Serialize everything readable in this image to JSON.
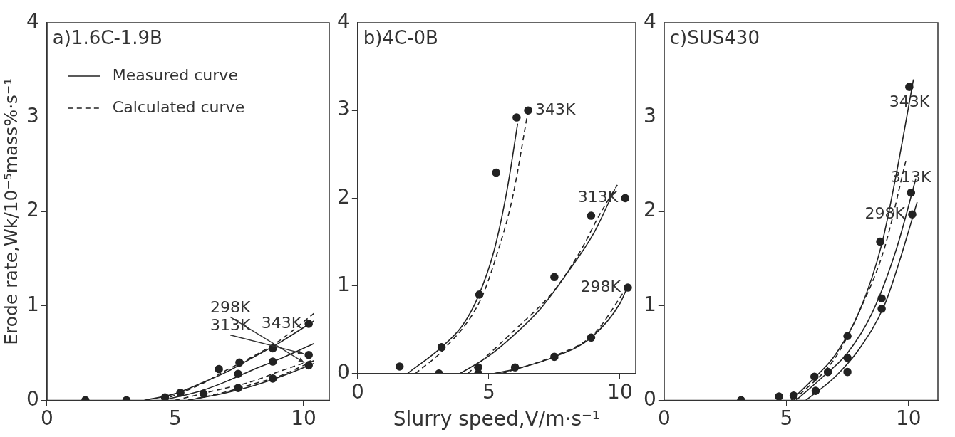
{
  "chart_data": [
    {
      "type": "scatter",
      "title": "a)1.6C-1.9B",
      "ylabel": "Erode rate,Wk/10⁻⁵mass%·s⁻¹",
      "xlim": [
        0,
        11
      ],
      "xticks": [
        0,
        5,
        10
      ],
      "ylim": [
        0,
        4
      ],
      "yticks": [
        0,
        1,
        2,
        3,
        4
      ],
      "grid": false,
      "legend": "top left",
      "series": [
        {
          "type": "scatter",
          "name": "343K",
          "color": "#222222",
          "marker": "circle",
          "x": [
            1.5,
            3.1,
            4.6,
            5.2,
            6.7,
            7.5,
            8.8,
            10.2
          ],
          "values": [
            0,
            0,
            0.03,
            0.08,
            0.33,
            0.4,
            0.55,
            0.81
          ]
        },
        {
          "type": "scatter",
          "name": "313K",
          "color": "#222222",
          "marker": "circle",
          "x": [
            7.45,
            8.8,
            10.2
          ],
          "values": [
            0.28,
            0.41,
            0.48
          ]
        },
        {
          "type": "scatter",
          "name": "298K",
          "color": "#222222",
          "marker": "circle",
          "x": [
            6.1,
            7.45,
            8.8,
            10.2
          ],
          "values": [
            0.07,
            0.13,
            0.23,
            0.37
          ]
        },
        {
          "type": "line",
          "name": "Measured curve",
          "color": "#222222",
          "marker": "none",
          "line_style": "solid",
          "x": [
            3.8,
            5,
            6,
            7,
            8,
            9,
            10.4
          ],
          "values": [
            0,
            0.07,
            0.18,
            0.3,
            0.45,
            0.6,
            0.84
          ]
        },
        {
          "type": "line",
          "name": "Calculated curve",
          "color": "#222222",
          "marker": "none",
          "line_style": "dashed",
          "x": [
            4.5,
            6,
            7,
            8,
            9,
            10.4
          ],
          "values": [
            0,
            0.17,
            0.32,
            0.46,
            0.62,
            0.92
          ]
        },
        {
          "type": "line",
          "color": "#222222",
          "marker": "none",
          "line_style": "solid",
          "x": [
            4.5,
            6,
            7,
            8,
            9,
            10.4
          ],
          "values": [
            0,
            0.1,
            0.2,
            0.32,
            0.43,
            0.6
          ]
        },
        {
          "type": "line",
          "color": "#222222",
          "marker": "none",
          "line_style": "dashed",
          "x": [
            5,
            6.5,
            8,
            9,
            10.4
          ],
          "values": [
            0,
            0.1,
            0.2,
            0.3,
            0.43
          ]
        },
        {
          "type": "line",
          "color": "#222222",
          "marker": "none",
          "line_style": "solid",
          "x": [
            5.5,
            7,
            8,
            9,
            10.4
          ],
          "values": [
            0,
            0.08,
            0.15,
            0.24,
            0.39
          ]
        },
        {
          "type": "line",
          "color": "#222222",
          "marker": "none",
          "line_style": "dashed",
          "x": [
            5.5,
            7,
            8,
            9,
            10.4
          ],
          "values": [
            0,
            0.09,
            0.17,
            0.25,
            0.42
          ]
        }
      ]
    },
    {
      "type": "scatter",
      "title": "b)4C-0B",
      "xlabel": "Slurry speed,V/m·s⁻¹",
      "xlim": [
        0,
        10.6
      ],
      "xticks": [
        0,
        5,
        10
      ],
      "ylim": [
        0,
        4
      ],
      "yticks": [
        0,
        1,
        2,
        3,
        4
      ],
      "grid": false,
      "series": [
        {
          "type": "scatter",
          "name": "343K",
          "color": "#222222",
          "marker": "circle",
          "x": [
            1.6,
            3.2,
            4.64,
            5.28,
            6.06,
            6.5
          ],
          "values": [
            0.08,
            0.3,
            0.9,
            2.29,
            2.92,
            3.0
          ]
        },
        {
          "type": "scatter",
          "name": "313K",
          "color": "#222222",
          "marker": "circle",
          "x": [
            3.1,
            4.6,
            7.5,
            8.9,
            10.2
          ],
          "values": [
            0,
            0.07,
            1.1,
            1.8,
            2.0
          ]
        },
        {
          "type": "scatter",
          "name": "298K",
          "color": "#222222",
          "marker": "circle",
          "x": [
            4.6,
            6.0,
            7.5,
            8.9,
            10.3
          ],
          "values": [
            0,
            0.07,
            0.19,
            0.41,
            0.98
          ]
        },
        {
          "type": "line",
          "color": "#222222",
          "marker": "none",
          "line_style": "solid",
          "x": [
            1.9,
            3.2,
            4,
            4.6,
            5.2,
            5.7,
            6.1
          ],
          "values": [
            0,
            0.3,
            0.55,
            0.88,
            1.4,
            2.1,
            2.85
          ]
        },
        {
          "type": "line",
          "color": "#222222",
          "marker": "none",
          "line_style": "dashed",
          "x": [
            2.2,
            3.3,
            4.7,
            5.3,
            5.9,
            6.5
          ],
          "values": [
            0,
            0.28,
            0.85,
            1.35,
            2.0,
            3.0
          ]
        },
        {
          "type": "line",
          "color": "#222222",
          "marker": "none",
          "line_style": "solid",
          "x": [
            3.9,
            5,
            6,
            7,
            8,
            9,
            9.8
          ],
          "values": [
            0,
            0.2,
            0.45,
            0.75,
            1.15,
            1.6,
            2.1
          ]
        },
        {
          "type": "line",
          "color": "#222222",
          "marker": "none",
          "line_style": "dashed",
          "x": [
            4.2,
            6,
            7.5,
            8.5,
            9.2,
            9.9
          ],
          "values": [
            0,
            0.5,
            0.95,
            1.4,
            1.8,
            2.15
          ]
        },
        {
          "type": "line",
          "color": "#222222",
          "marker": "none",
          "line_style": "solid",
          "x": [
            5.2,
            6,
            7.5,
            8.9,
            10,
            10.3
          ],
          "values": [
            0,
            0.05,
            0.19,
            0.41,
            0.8,
            1.0
          ]
        },
        {
          "type": "line",
          "color": "#222222",
          "marker": "none",
          "line_style": "dashed",
          "x": [
            5.5,
            7.5,
            9,
            10.3
          ],
          "values": [
            0,
            0.2,
            0.45,
            1.0
          ]
        }
      ]
    },
    {
      "type": "scatter",
      "title": "c)SUS430",
      "xlim": [
        0,
        11.2
      ],
      "xticks": [
        0,
        5,
        10
      ],
      "ylim": [
        0,
        4
      ],
      "yticks": [
        0,
        1,
        2,
        3,
        4
      ],
      "grid": false,
      "series": [
        {
          "type": "scatter",
          "name": "343K",
          "color": "#222222",
          "marker": "circle",
          "x": [
            3.15,
            4.7,
            5.3,
            6.15,
            7.5,
            8.84,
            10.03
          ],
          "values": [
            0,
            0.04,
            0.05,
            0.25,
            0.68,
            1.68,
            3.32
          ]
        },
        {
          "type": "scatter",
          "name": "313K",
          "color": "#222222",
          "marker": "circle",
          "x": [
            6.7,
            7.5,
            8.9,
            10.1
          ],
          "values": [
            0.3,
            0.45,
            1.08,
            2.2
          ]
        },
        {
          "type": "scatter",
          "name": "298K",
          "color": "#222222",
          "marker": "circle",
          "x": [
            6.2,
            7.5,
            8.9,
            10.15
          ],
          "values": [
            0.1,
            0.3,
            0.97,
            1.97
          ]
        },
        {
          "type": "line",
          "color": "#222222",
          "marker": "none",
          "line_style": "solid",
          "x": [
            5.2,
            6,
            7,
            8,
            8.9,
            9.5,
            10.2
          ],
          "values": [
            0,
            0.2,
            0.48,
            0.95,
            1.65,
            2.4,
            3.4
          ]
        },
        {
          "type": "line",
          "color": "#222222",
          "marker": "none",
          "line_style": "dashed",
          "x": [
            5.3,
            7,
            8,
            9,
            9.9
          ],
          "values": [
            0,
            0.45,
            0.95,
            1.6,
            2.55
          ]
        },
        {
          "type": "line",
          "color": "#222222",
          "marker": "none",
          "line_style": "solid",
          "x": [
            5.4,
            6.5,
            7.5,
            8.5,
            9.5,
            10.3
          ],
          "values": [
            0,
            0.25,
            0.5,
            0.92,
            1.6,
            2.35
          ]
        },
        {
          "type": "line",
          "color": "#222222",
          "marker": "none",
          "line_style": "solid",
          "x": [
            5.8,
            7,
            8,
            9,
            9.6,
            10.35
          ],
          "values": [
            0,
            0.25,
            0.55,
            1.0,
            1.45,
            2.1
          ]
        }
      ]
    }
  ]
}
